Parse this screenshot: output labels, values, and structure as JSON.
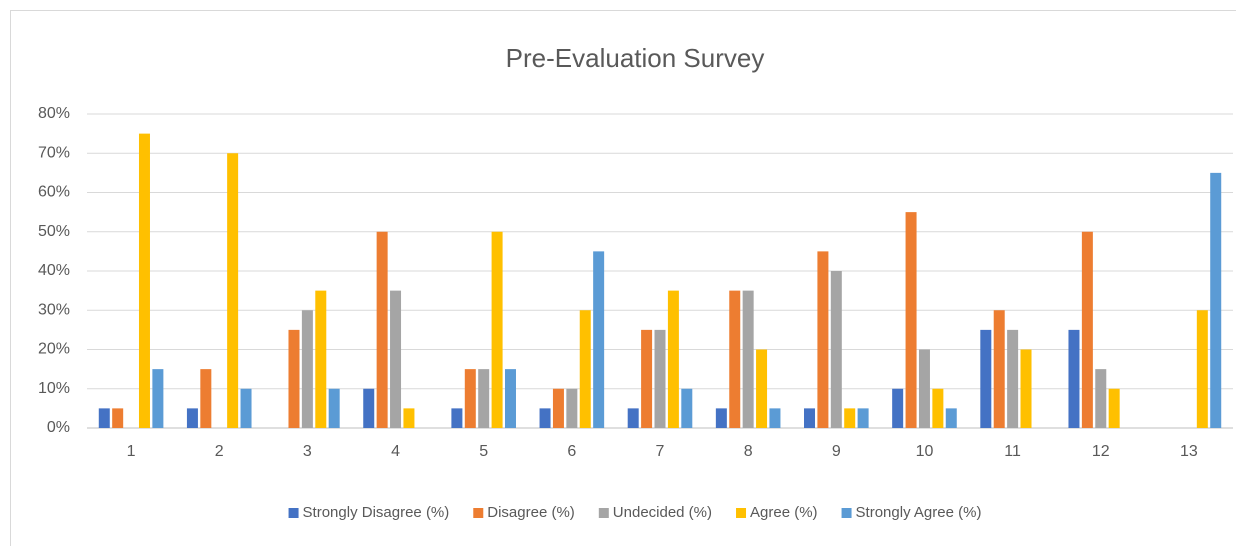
{
  "chart_data": {
    "type": "bar",
    "title": "Pre-Evaluation Survey",
    "categories": [
      "1",
      "2",
      "3",
      "4",
      "5",
      "6",
      "7",
      "8",
      "9",
      "10",
      "11",
      "12",
      "13"
    ],
    "series": [
      {
        "name": "Strongly Disagree (%)",
        "color": "#4472c4",
        "values": [
          5,
          5,
          0,
          10,
          5,
          5,
          5,
          5,
          5,
          10,
          25,
          25,
          0
        ]
      },
      {
        "name": "Disagree (%)",
        "color": "#ed7d31",
        "values": [
          5,
          15,
          25,
          50,
          15,
          10,
          25,
          35,
          45,
          55,
          30,
          50,
          0
        ]
      },
      {
        "name": "Undecided (%)",
        "color": "#a5a5a5",
        "values": [
          0,
          0,
          30,
          35,
          15,
          10,
          25,
          35,
          40,
          20,
          25,
          15,
          0
        ]
      },
      {
        "name": "Agree (%)",
        "color": "#ffc000",
        "values": [
          75,
          70,
          35,
          5,
          50,
          30,
          35,
          20,
          5,
          10,
          20,
          10,
          30
        ]
      },
      {
        "name": "Strongly Agree (%)",
        "color": "#5b9bd5",
        "values": [
          15,
          10,
          10,
          0,
          15,
          45,
          10,
          5,
          5,
          5,
          0,
          0,
          65
        ]
      }
    ],
    "ylim": [
      0,
      80
    ],
    "yticks": [
      {
        "value": 0,
        "label": "0%"
      },
      {
        "value": 10,
        "label": "10%"
      },
      {
        "value": 20,
        "label": "20%"
      },
      {
        "value": 30,
        "label": "30%"
      },
      {
        "value": 40,
        "label": "40%"
      },
      {
        "value": 50,
        "label": "50%"
      },
      {
        "value": 60,
        "label": "60%"
      },
      {
        "value": 70,
        "label": "70%"
      },
      {
        "value": 80,
        "label": "80%"
      }
    ],
    "grid": true,
    "legend": "bottom"
  }
}
